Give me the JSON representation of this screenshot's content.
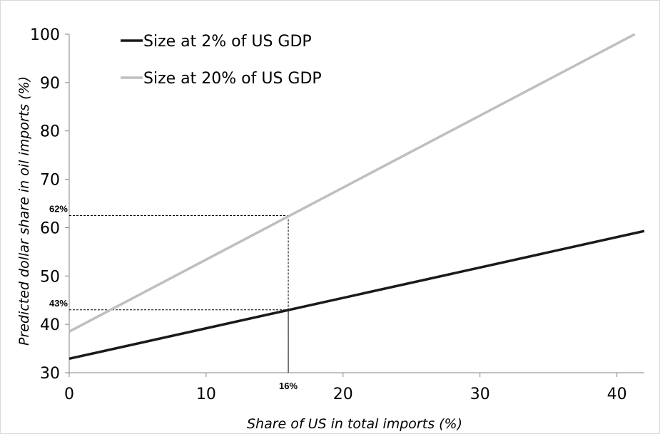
{
  "chart_data": {
    "type": "line",
    "xlabel": "Share of US in total imports (%)",
    "ylabel": "Predicted dollar share in oil imports (%)",
    "xlim": [
      0,
      42
    ],
    "ylim": [
      30,
      100
    ],
    "x_ticks": [
      0,
      10,
      20,
      30,
      40
    ],
    "y_ticks": [
      30,
      40,
      50,
      60,
      70,
      80,
      90,
      100
    ],
    "grid": false,
    "legend_position": "top-left",
    "series": [
      {
        "name": "Size at 2% of US GDP",
        "color": "#1a1a1a",
        "x": [
          0,
          42
        ],
        "y": [
          32.9,
          59.3
        ]
      },
      {
        "name": "Size at 20% of US GDP",
        "color": "#bfbfbf",
        "x": [
          0,
          41.3
        ],
        "y": [
          38.5,
          100
        ]
      }
    ],
    "annotations": [
      {
        "label": "62%",
        "x": 16,
        "y": 62.5
      },
      {
        "label": "43%",
        "x": 16,
        "y": 43
      },
      {
        "label": "16%",
        "x": 16,
        "y": 30
      }
    ]
  }
}
